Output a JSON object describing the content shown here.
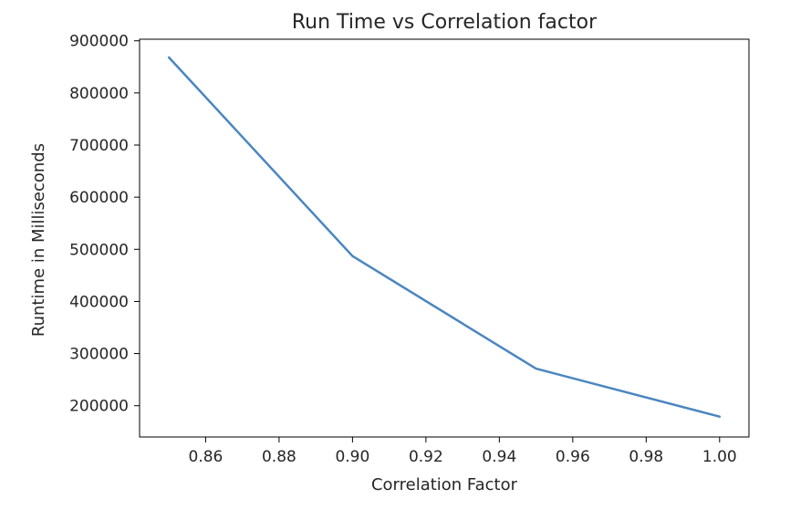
{
  "chart_data": {
    "type": "line",
    "title": "Run Time vs Correlation factor",
    "xlabel": "Correlation Factor",
    "ylabel": "Runtime in Milliseconds",
    "xlim": [
      0.842,
      1.008
    ],
    "ylim": [
      140000,
      903000
    ],
    "x_ticks": [
      0.86,
      0.88,
      0.9,
      0.92,
      0.94,
      0.96,
      0.98,
      1.0
    ],
    "x_tick_labels": [
      "0.86",
      "0.88",
      "0.90",
      "0.92",
      "0.94",
      "0.96",
      "0.98",
      "1.00"
    ],
    "y_ticks": [
      200000,
      300000,
      400000,
      500000,
      600000,
      700000,
      800000,
      900000
    ],
    "y_tick_labels": [
      "200000",
      "300000",
      "400000",
      "500000",
      "600000",
      "700000",
      "800000",
      "900000"
    ],
    "grid": false,
    "legend": "none",
    "series": [
      {
        "color": "#4a86c0",
        "x": [
          0.85,
          0.9,
          0.95,
          1.0
        ],
        "y": [
          868000,
          487000,
          271000,
          179000
        ]
      }
    ]
  }
}
